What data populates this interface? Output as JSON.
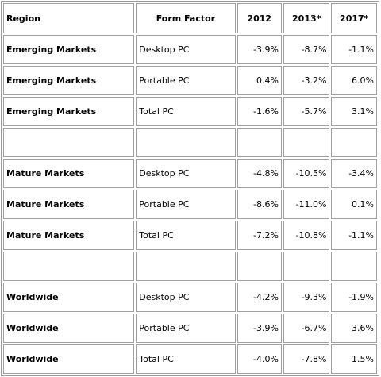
{
  "table": {
    "headers": {
      "region": "Region",
      "form_factor": "Form Factor",
      "y2012": "2012",
      "y2013": "2013*",
      "y2017": "2017*"
    },
    "rows": [
      {
        "region": "Emerging Markets",
        "form_factor": "Desktop PC",
        "y2012": "-3.9%",
        "y2013": "-8.7%",
        "y2017": "-1.1%"
      },
      {
        "region": "Emerging Markets",
        "form_factor": "Portable PC",
        "y2012": "0.4%",
        "y2013": "-3.2%",
        "y2017": "6.0%"
      },
      {
        "region": "Emerging Markets",
        "form_factor": "Total PC",
        "y2012": "-1.6%",
        "y2013": "-5.7%",
        "y2017": "3.1%"
      },
      {
        "region": "",
        "form_factor": "",
        "y2012": "",
        "y2013": "",
        "y2017": ""
      },
      {
        "region": "Mature Markets",
        "form_factor": "Desktop PC",
        "y2012": "-4.8%",
        "y2013": "-10.5%",
        "y2017": "-3.4%"
      },
      {
        "region": "Mature Markets",
        "form_factor": "Portable PC",
        "y2012": "-8.6%",
        "y2013": "-11.0%",
        "y2017": "0.1%"
      },
      {
        "region": "Mature Markets",
        "form_factor": "Total PC",
        "y2012": "-7.2%",
        "y2013": "-10.8%",
        "y2017": "-1.1%"
      },
      {
        "region": "",
        "form_factor": "",
        "y2012": "",
        "y2013": "",
        "y2017": ""
      },
      {
        "region": "Worldwide",
        "form_factor": "Desktop PC",
        "y2012": "-4.2%",
        "y2013": "-9.3%",
        "y2017": "-1.9%"
      },
      {
        "region": "Worldwide",
        "form_factor": "Portable PC",
        "y2012": "-3.9%",
        "y2013": "-6.7%",
        "y2017": "3.6%"
      },
      {
        "region": "Worldwide",
        "form_factor": "Total PC",
        "y2012": "-4.0%",
        "y2013": "-7.8%",
        "y2017": "1.5%"
      }
    ]
  }
}
